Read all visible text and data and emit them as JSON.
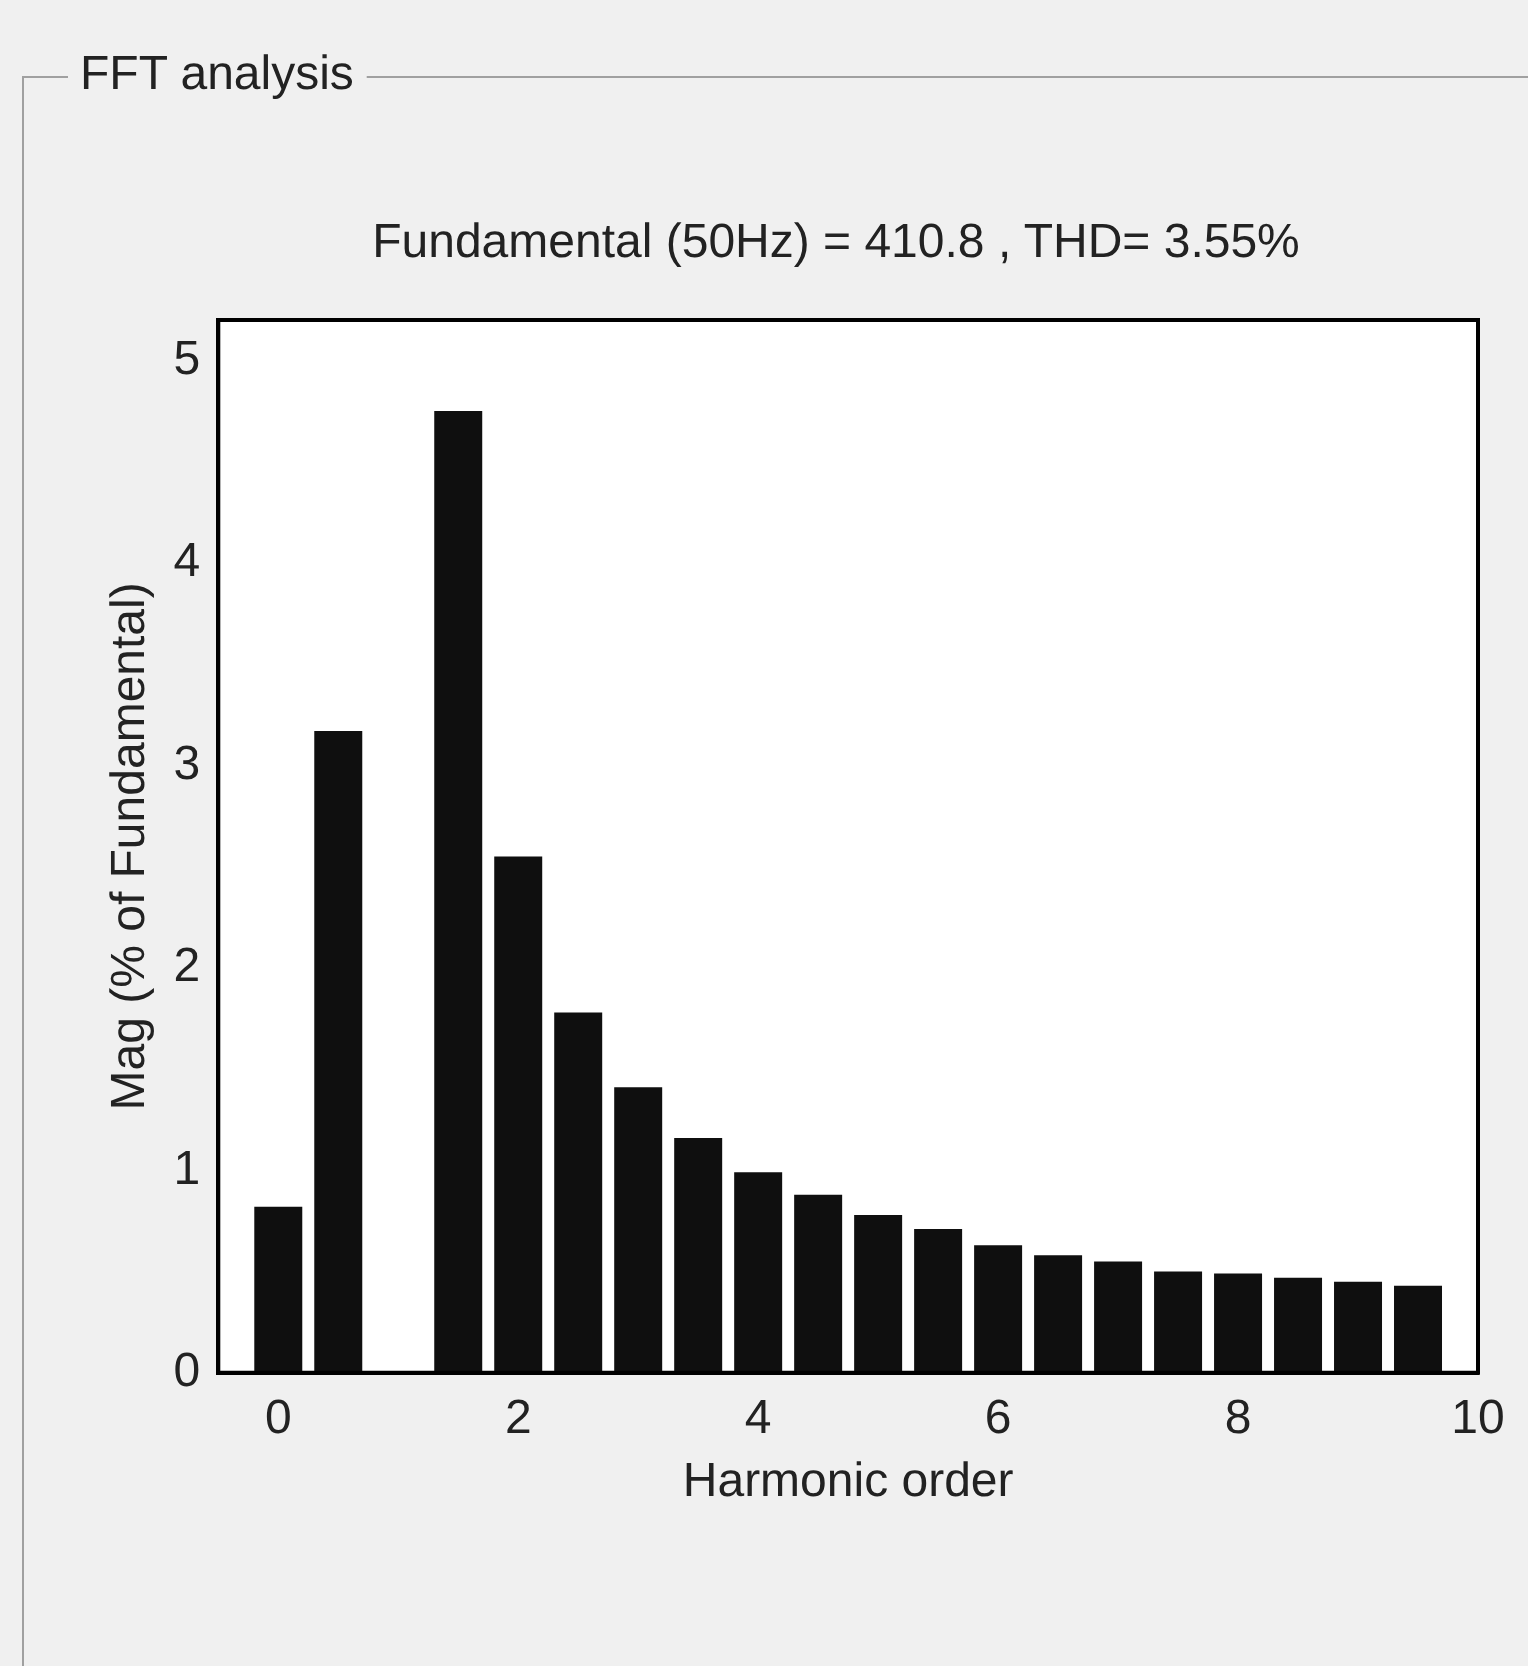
{
  "chart_data": {
    "type": "bar",
    "title": "FFT analysis",
    "subtitle": "Fundamental (50Hz) = 410.8 , THD= 3.55%",
    "xlabel": "Harmonic order",
    "ylabel": "Mag (% of Fundamental)",
    "x": [
      0,
      0.5,
      1,
      1.5,
      2,
      2.5,
      3,
      3.5,
      4,
      4.5,
      5,
      5.5,
      6,
      6.5,
      7,
      7.5,
      8,
      8.5,
      9,
      9.5
    ],
    "values": [
      0.82,
      3.17,
      null,
      4.75,
      2.55,
      1.78,
      1.41,
      1.16,
      0.99,
      0.88,
      0.78,
      0.71,
      0.63,
      0.58,
      0.55,
      0.5,
      0.49,
      0.47,
      0.45,
      0.43
    ],
    "color": "#0f0f0f",
    "xlim": [
      -0.5,
      10
    ],
    "xticks": [
      0,
      2,
      4,
      6,
      8,
      10
    ],
    "ylim": [
      0,
      5.2
    ],
    "yticks": [
      0,
      1,
      2,
      3,
      4,
      5
    ],
    "grid": false,
    "legend": false
  }
}
